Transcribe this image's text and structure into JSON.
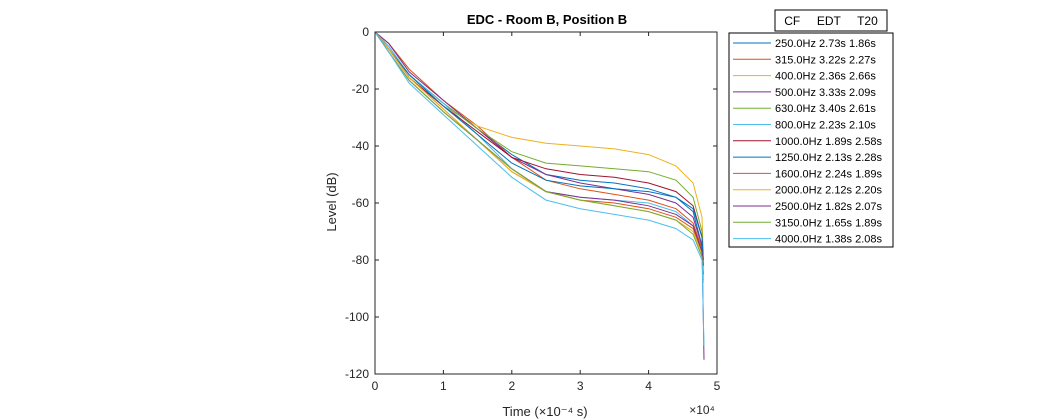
{
  "chart_data": {
    "type": "line",
    "title": "EDC - Room B, Position B",
    "xlabel": "Time (×10⁻⁴ s)",
    "ylabel": "Level (dB)",
    "x_exponent_label": "×10⁴",
    "xlim": [
      0,
      50000
    ],
    "ylim": [
      -120,
      0
    ],
    "xticks": [
      0,
      10000,
      20000,
      30000,
      40000,
      50000
    ],
    "xtick_labels": [
      "0",
      "1",
      "2",
      "3",
      "4",
      "5"
    ],
    "yticks": [
      0,
      -20,
      -40,
      -60,
      -80,
      -100,
      -120
    ],
    "ytick_labels": [
      "0",
      "-20",
      "-40",
      "-60",
      "-80",
      "-100",
      "-120"
    ],
    "grid": false,
    "legend_title": "CF     EDT     T20",
    "legend_position": "outside-right",
    "series": [
      {
        "name": "250.0Hz 2.73s 1.86s",
        "color": "#0072BD",
        "x": [
          0,
          2000,
          5000,
          10000,
          15000,
          20000,
          25000,
          30000,
          35000,
          40000,
          44000,
          46500,
          47800,
          48000
        ],
        "y": [
          0,
          -6,
          -15,
          -25,
          -34,
          -43,
          -50,
          -52,
          -53,
          -55,
          -58,
          -63,
          -75,
          -80
        ]
      },
      {
        "name": "315.0Hz 3.22s 2.27s",
        "color": "#D95319",
        "x": [
          0,
          2000,
          5000,
          10000,
          15000,
          20000,
          25000,
          30000,
          35000,
          40000,
          44000,
          46500,
          47800,
          48000
        ],
        "y": [
          0,
          -4,
          -13,
          -24,
          -33,
          -44,
          -52,
          -55,
          -57,
          -59,
          -62,
          -67,
          -76,
          -82
        ]
      },
      {
        "name": "400.0Hz 2.36s 2.66s",
        "color": "#EDB120",
        "x": [
          0,
          2000,
          5000,
          10000,
          15000,
          20000,
          25000,
          30000,
          35000,
          40000,
          44000,
          46500,
          47800,
          48000
        ],
        "y": [
          0,
          -6,
          -16,
          -26,
          -33,
          -37,
          -39,
          -40,
          -41,
          -43,
          -47,
          -53,
          -65,
          -78
        ]
      },
      {
        "name": "500.0Hz 3.33s 2.09s",
        "color": "#7E2F8E",
        "x": [
          0,
          2000,
          5000,
          10000,
          15000,
          20000,
          25000,
          30000,
          35000,
          40000,
          44000,
          46500,
          47800,
          48000,
          48100
        ],
        "y": [
          0,
          -4,
          -14,
          -24,
          -34,
          -44,
          -50,
          -53,
          -55,
          -57,
          -60,
          -65,
          -75,
          -100,
          -115
        ]
      },
      {
        "name": "630.0Hz 3.40s 2.61s",
        "color": "#77AC30",
        "x": [
          0,
          2000,
          5000,
          10000,
          15000,
          20000,
          25000,
          30000,
          35000,
          40000,
          44000,
          46500,
          47800,
          48000
        ],
        "y": [
          0,
          -5,
          -15,
          -25,
          -34,
          -42,
          -46,
          -47,
          -48,
          -49,
          -52,
          -58,
          -70,
          -80
        ]
      },
      {
        "name": "800.0Hz 2.23s 2.10s",
        "color": "#4DBEEE",
        "x": [
          0,
          2000,
          5000,
          10000,
          15000,
          20000,
          25000,
          30000,
          35000,
          40000,
          44000,
          46500,
          47800,
          48000,
          48100
        ],
        "y": [
          0,
          -5,
          -15,
          -25,
          -36,
          -48,
          -56,
          -58,
          -59,
          -60,
          -63,
          -68,
          -78,
          -100,
          -110
        ]
      },
      {
        "name": "1000.0Hz 1.89s 2.58s",
        "color": "#A2142F",
        "x": [
          0,
          2000,
          5000,
          10000,
          15000,
          20000,
          25000,
          30000,
          35000,
          40000,
          44000,
          46500,
          47800,
          48000
        ],
        "y": [
          0,
          -6,
          -16,
          -26,
          -35,
          -44,
          -48,
          -50,
          -51,
          -53,
          -56,
          -61,
          -72,
          -82
        ]
      },
      {
        "name": "1250.0Hz 2.13s 2.28s",
        "color": "#0072BD",
        "x": [
          0,
          2000,
          5000,
          10000,
          15000,
          20000,
          25000,
          30000,
          35000,
          40000,
          44000,
          46500,
          47800,
          48000
        ],
        "y": [
          0,
          -6,
          -15,
          -26,
          -36,
          -46,
          -52,
          -54,
          -55,
          -56,
          -58,
          -62,
          -72,
          -80
        ]
      },
      {
        "name": "1600.0Hz 2.24s 1.89s",
        "color": "#D95319",
        "x": [
          0,
          2000,
          5000,
          10000,
          15000,
          20000,
          25000,
          30000,
          35000,
          40000,
          44000,
          46500,
          47800,
          48000
        ],
        "y": [
          0,
          -6,
          -16,
          -27,
          -38,
          -49,
          -56,
          -59,
          -60,
          -62,
          -65,
          -69,
          -77,
          -85
        ]
      },
      {
        "name": "2000.0Hz 2.12s 2.20s",
        "color": "#EDB120",
        "x": [
          0,
          2000,
          5000,
          10000,
          15000,
          20000,
          25000,
          30000,
          35000,
          40000,
          44000,
          46500,
          47800,
          48000
        ],
        "y": [
          0,
          -6,
          -16,
          -27,
          -38,
          -49,
          -56,
          -59,
          -61,
          -63,
          -66,
          -70,
          -78,
          -86
        ]
      },
      {
        "name": "2500.0Hz 1.82s 2.07s",
        "color": "#7E2F8E",
        "x": [
          0,
          2000,
          5000,
          10000,
          15000,
          20000,
          25000,
          30000,
          35000,
          40000,
          44000,
          46500,
          47800,
          48000
        ],
        "y": [
          0,
          -7,
          -17,
          -28,
          -38,
          -48,
          -56,
          -58,
          -59,
          -61,
          -64,
          -68,
          -77,
          -85
        ]
      },
      {
        "name": "3150.0Hz 1.65s 1.89s",
        "color": "#77AC30",
        "x": [
          0,
          2000,
          5000,
          10000,
          15000,
          20000,
          25000,
          30000,
          35000,
          40000,
          44000,
          46500,
          47800,
          48000
        ],
        "y": [
          0,
          -7,
          -17,
          -28,
          -38,
          -48,
          -56,
          -59,
          -61,
          -63,
          -66,
          -71,
          -79,
          -87
        ]
      },
      {
        "name": "4000.0Hz 1.38s 2.08s",
        "color": "#4DBEEE",
        "x": [
          0,
          2000,
          5000,
          10000,
          15000,
          20000,
          25000,
          30000,
          35000,
          40000,
          44000,
          46500,
          47800,
          48000
        ],
        "y": [
          0,
          -7,
          -18,
          -29,
          -40,
          -51,
          -59,
          -62,
          -64,
          -66,
          -69,
          -73,
          -80,
          -88
        ]
      }
    ]
  }
}
